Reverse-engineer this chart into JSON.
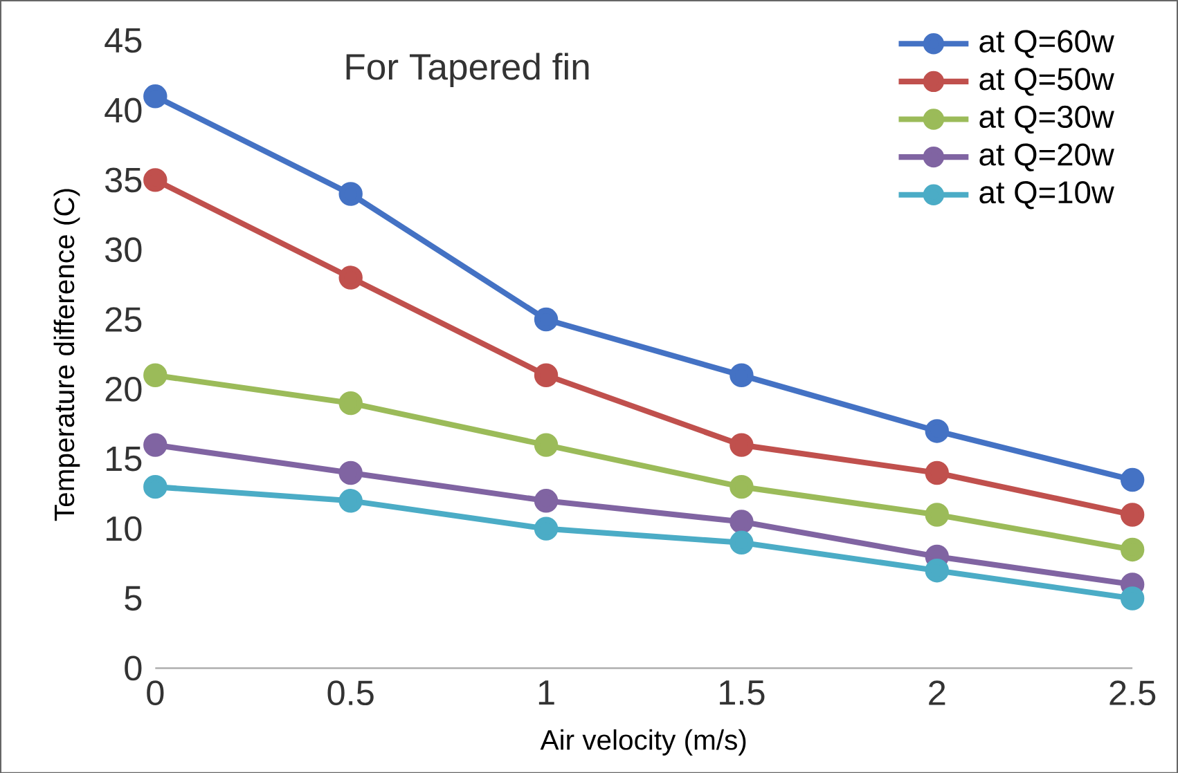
{
  "chart_data": {
    "type": "line",
    "title": "For Tapered fin",
    "xlabel": "Air velocity (m/s)",
    "ylabel": "Temperature difference (C)",
    "x": [
      0,
      0.5,
      1,
      1.5,
      2,
      2.5
    ],
    "series": [
      {
        "name": "at Q=60w",
        "color": "#4472c4",
        "values": [
          41,
          34,
          25,
          21,
          17,
          13.5
        ]
      },
      {
        "name": "at Q=50w",
        "color": "#c0504d",
        "values": [
          35,
          28,
          21,
          16,
          14,
          11
        ]
      },
      {
        "name": "at Q=30w",
        "color": "#9bbb59",
        "values": [
          21,
          19,
          16,
          13,
          11,
          8.5
        ]
      },
      {
        "name": "at Q=20w",
        "color": "#8064a2",
        "values": [
          16,
          14,
          12,
          10.5,
          8,
          6
        ]
      },
      {
        "name": "at Q=10w",
        "color": "#4bacc6",
        "values": [
          13,
          12,
          10,
          9,
          7,
          5
        ]
      }
    ],
    "xlim": [
      0,
      2.5
    ],
    "ylim": [
      0,
      45
    ],
    "xticks": [
      0,
      0.5,
      1,
      1.5,
      2,
      2.5
    ],
    "yticks": [
      0,
      5,
      10,
      15,
      20,
      25,
      30,
      35,
      40,
      45
    ],
    "grid": false,
    "legend": "top right",
    "marker": "circle",
    "line_style": "solid"
  }
}
